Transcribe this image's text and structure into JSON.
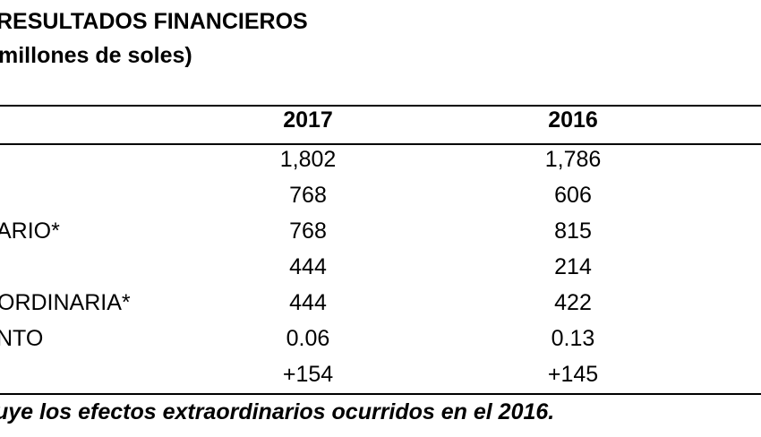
{
  "title": "RESULTADOS FINANCIEROS",
  "subtitle": "millones de soles)",
  "table": {
    "headers": [
      "2017",
      "2016"
    ],
    "rows": [
      {
        "label": "",
        "v2017": "1,802",
        "v2016": "1,786"
      },
      {
        "label": "",
        "v2017": "768",
        "v2016": "606"
      },
      {
        "label": "ARIO*",
        "v2017": "768",
        "v2016": "815"
      },
      {
        "label": "",
        "v2017": "444",
        "v2016": "214"
      },
      {
        "label": "ORDINARIA*",
        "v2017": "444",
        "v2016": "422"
      },
      {
        "label": "NTO",
        "v2017": "0.06",
        "v2016": "0.13"
      },
      {
        "label": "",
        "v2017": "+154",
        "v2016": "+145"
      }
    ]
  },
  "footnote": "uye los efectos extraordinarios ocurridos en el 2016."
}
